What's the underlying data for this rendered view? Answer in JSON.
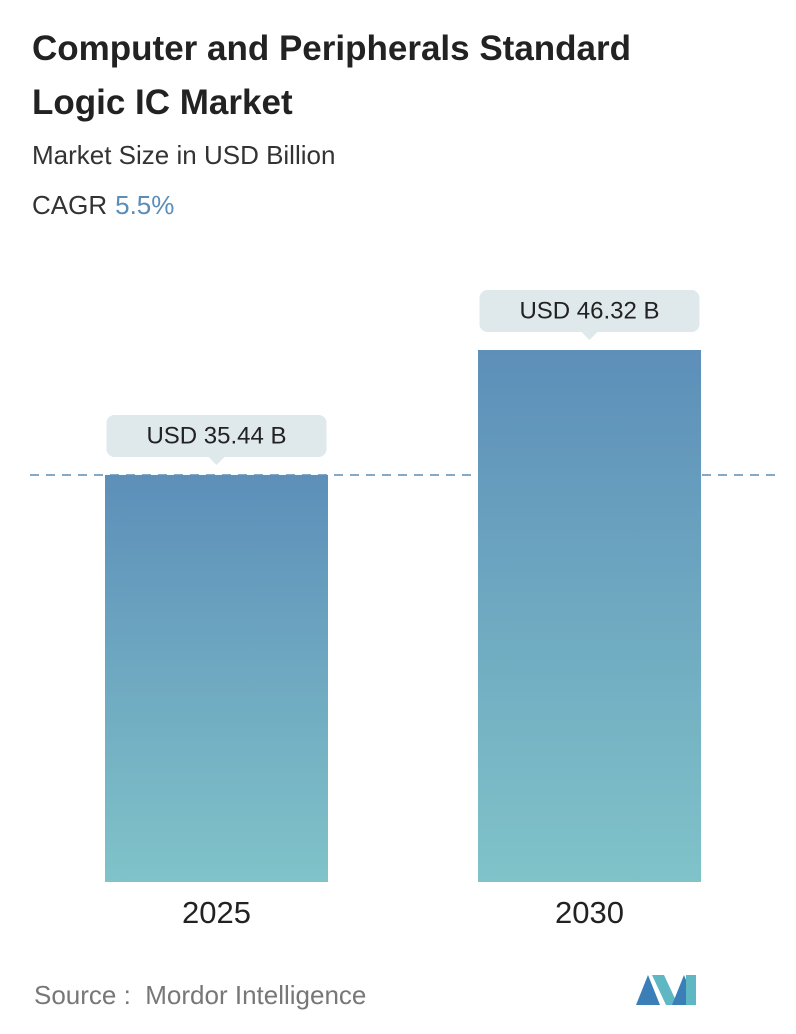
{
  "chart_data": {
    "type": "bar",
    "title": "Computer and Peripherals Standard Logic IC Market",
    "subtitle": "Market Size in USD Billion",
    "cagr_label": "CAGR",
    "cagr_value": "5.5%",
    "categories": [
      "2025",
      "2030"
    ],
    "series": [
      {
        "values": [
          35.44,
          46.32
        ],
        "value_labels": [
          "USD 35.44 B",
          "USD 46.32 B"
        ]
      }
    ],
    "source": "Source :  Mordor Intelligence"
  }
}
